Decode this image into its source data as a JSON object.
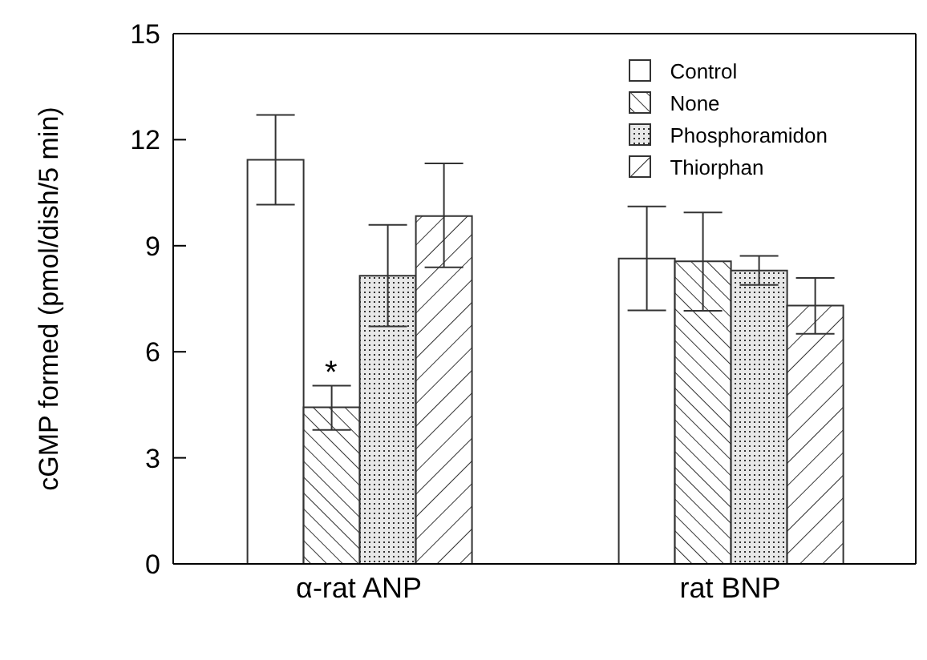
{
  "chart_data": {
    "type": "bar",
    "ylabel": "cGMP formed (pmol/dish/5 min)",
    "categories": [
      "α-rat ANP",
      "rat BNP"
    ],
    "series": [
      {
        "name": "Control",
        "color": "#ffffff",
        "values": [
          11.43,
          8.64
        ],
        "errors": [
          [
            10.16,
            12.7
          ],
          [
            7.17,
            10.11
          ]
        ]
      },
      {
        "name": "None",
        "color": "#333333",
        "values": [
          4.43,
          8.56
        ],
        "errors": [
          [
            3.79,
            5.04
          ],
          [
            7.16,
            9.94
          ]
        ]
      },
      {
        "name": "Phosphoramidon",
        "color": "#333333",
        "values": [
          8.15,
          8.3
        ],
        "errors": [
          [
            6.72,
            9.59
          ],
          [
            7.89,
            8.71
          ]
        ]
      },
      {
        "name": "Thiorphan",
        "color": "#333333",
        "values": [
          9.84,
          7.31
        ],
        "errors": [
          [
            8.39,
            11.33
          ],
          [
            6.51,
            8.09
          ]
        ]
      }
    ],
    "ylim": [
      0,
      15
    ],
    "yticks": [
      0,
      3,
      6,
      9,
      12,
      15
    ],
    "grid": false,
    "legend": "top right",
    "annotations": [
      {
        "text": "*",
        "x": "α-rat ANP",
        "y": 5.04
      }
    ]
  }
}
